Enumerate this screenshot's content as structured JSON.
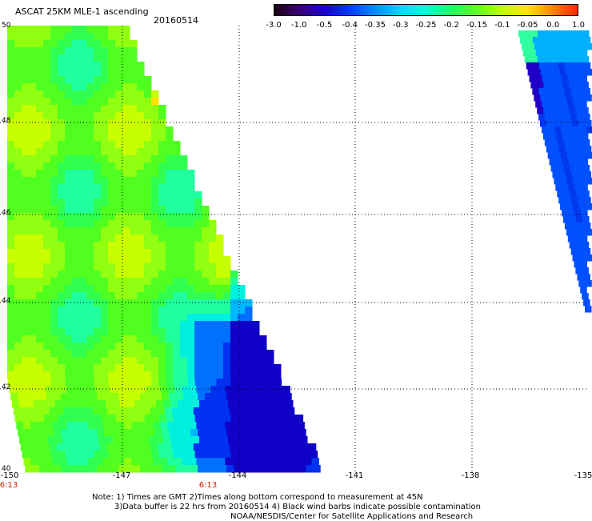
{
  "header": {
    "title": "ASCAT 25KM MLE-1 ascending",
    "date": "20160514"
  },
  "colorbar": {
    "ticks": [
      "-3.0",
      "-1.0",
      "-0.5",
      "-0.4",
      "-0.35",
      "-0.3",
      "-0.25",
      "-0.2",
      "-0.15",
      "-0.1",
      "-0.05",
      "0.0",
      "1.0"
    ],
    "colors": [
      "#1a0010",
      "#3a0078",
      "#1a00d0",
      "#0040ff",
      "#0090ff",
      "#00d8ff",
      "#00ffd0",
      "#20ff60",
      "#60ff20",
      "#c0ff00",
      "#ffe000",
      "#ff8000",
      "#ff2000"
    ]
  },
  "map": {
    "lat_labels": [
      "50",
      "48",
      "46",
      "44",
      "42",
      "40"
    ],
    "lon_labels": [
      "-150",
      "-147",
      "-144",
      "-141",
      "-138",
      "-135"
    ],
    "time_labels": [
      "6:13",
      "6:13"
    ],
    "time_color": "#cc2200"
  },
  "notes": {
    "line1": "Note: 1) Times are GMT 2)Times along bottom correspond to measurement at 45N",
    "line2": "3)Data buffer is 22 hrs from 20160514 4) Black wind barbs indicate possible contamination",
    "line3": "NOAA/NESDIS/Center for Satellite Applications and Research"
  }
}
